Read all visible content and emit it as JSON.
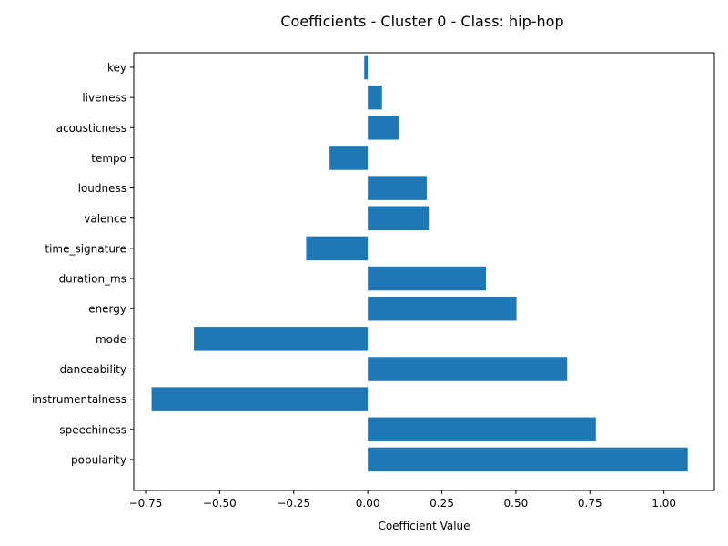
{
  "chart_data": {
    "type": "bar",
    "orientation": "horizontal",
    "title": "Coefficients - Cluster 0 - Class: hip-hop",
    "xlabel": "Coefficient Value",
    "ylabel": "",
    "xlim": [
      -0.79,
      1.17
    ],
    "x_ticks": [
      "−0.75",
      "−0.50",
      "−0.25",
      "0.00",
      "0.25",
      "0.50",
      "0.75",
      "1.00"
    ],
    "grid": false,
    "bar_color": "#1f77b4",
    "categories": [
      "key",
      "liveness",
      "acousticness",
      "tempo",
      "loudness",
      "valence",
      "time_signature",
      "duration_ms",
      "energy",
      "mode",
      "danceability",
      "instrumentalness",
      "speechiness",
      "popularity"
    ],
    "values": [
      -0.012,
      0.048,
      0.104,
      -0.129,
      0.199,
      0.206,
      -0.208,
      0.399,
      0.502,
      -0.587,
      0.673,
      -0.73,
      0.77,
      1.08
    ]
  }
}
